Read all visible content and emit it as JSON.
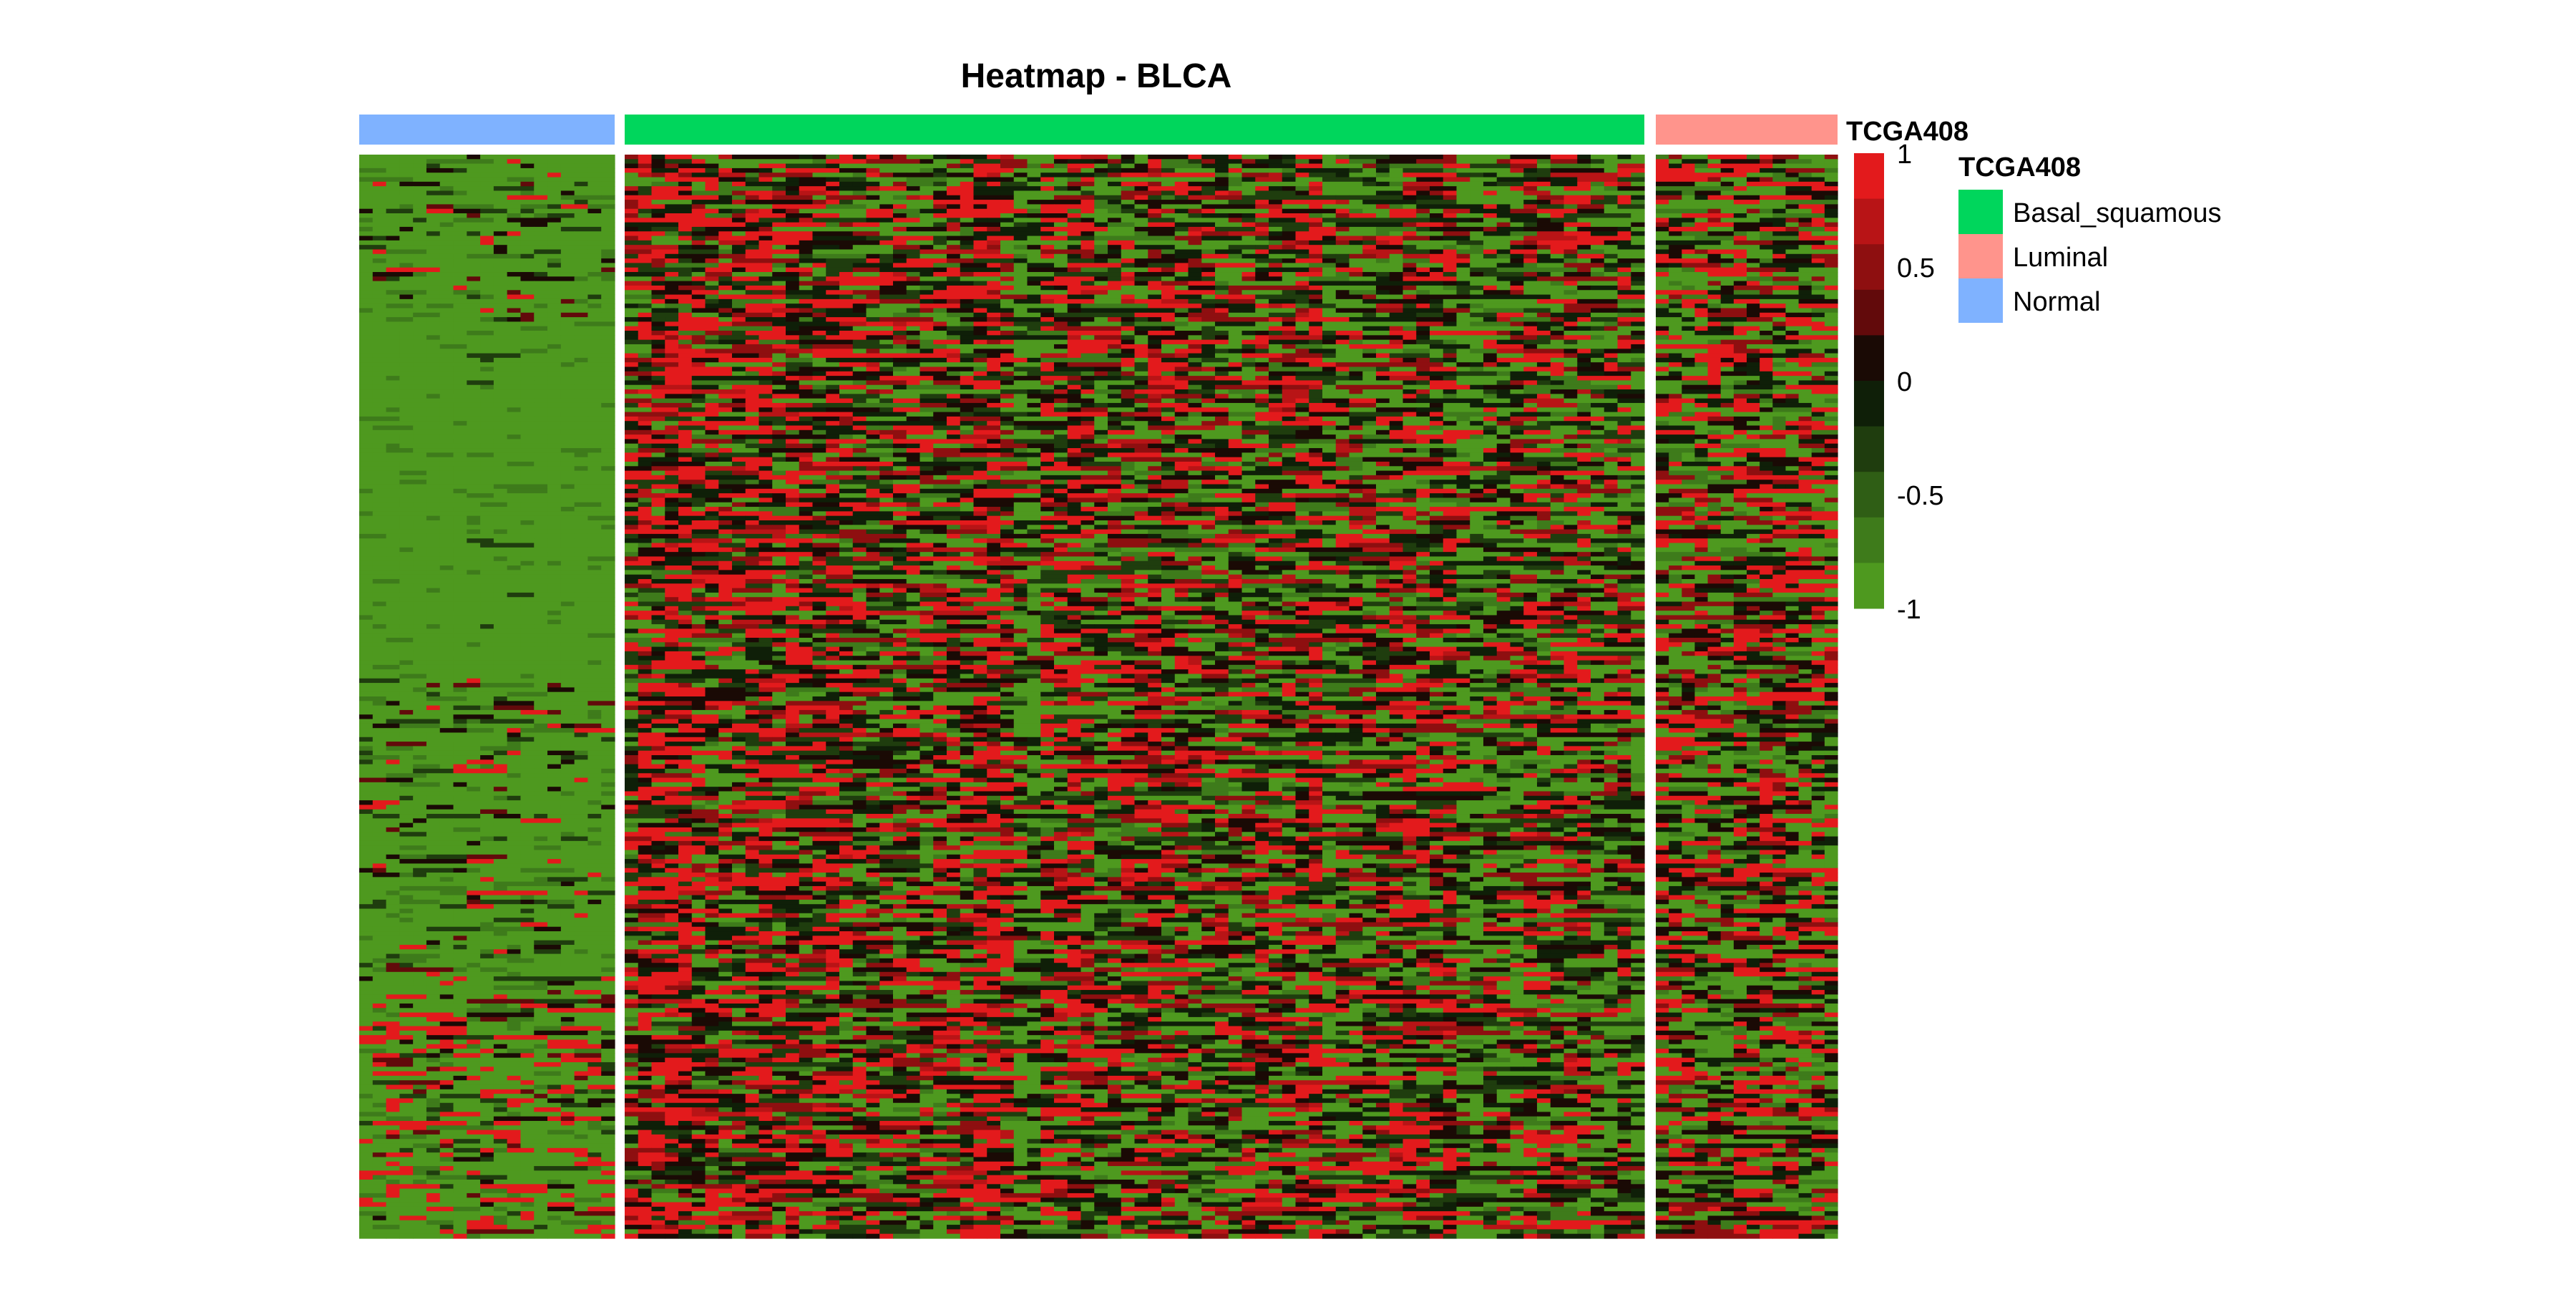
{
  "chart_data": {
    "type": "heatmap",
    "title": "Heatmap - BLCA",
    "annotation": {
      "name": "TCGA408",
      "groups": [
        {
          "name": "Normal",
          "color": "#7FB2FF",
          "columns": 19,
          "pattern": "low"
        },
        {
          "name": "Basal_squamous",
          "color": "#00D65C",
          "columns": 76,
          "pattern": "mixed"
        },
        {
          "name": "Luminal",
          "color": "#FF948C",
          "columns": 14,
          "pattern": "lowish"
        }
      ]
    },
    "rows": 240,
    "color_scale": {
      "min": -1,
      "max": 1,
      "ticks": [
        1,
        0.5,
        0,
        -0.5,
        -1
      ],
      "steps": [
        "#E31A1C",
        "#B81416",
        "#8E0F10",
        "#620A0B",
        "#1A0A05",
        "#0F1F08",
        "#1F3D0E",
        "#2F5E15",
        "#3E7B1B",
        "#4E991F"
      ]
    },
    "legend": {
      "title": "TCGA408",
      "position": "right",
      "entries": [
        {
          "label": "Basal_squamous",
          "color": "#00D65C"
        },
        {
          "label": "Luminal",
          "color": "#FF948C"
        },
        {
          "label": "Normal",
          "color": "#7FB2FF"
        }
      ]
    }
  }
}
